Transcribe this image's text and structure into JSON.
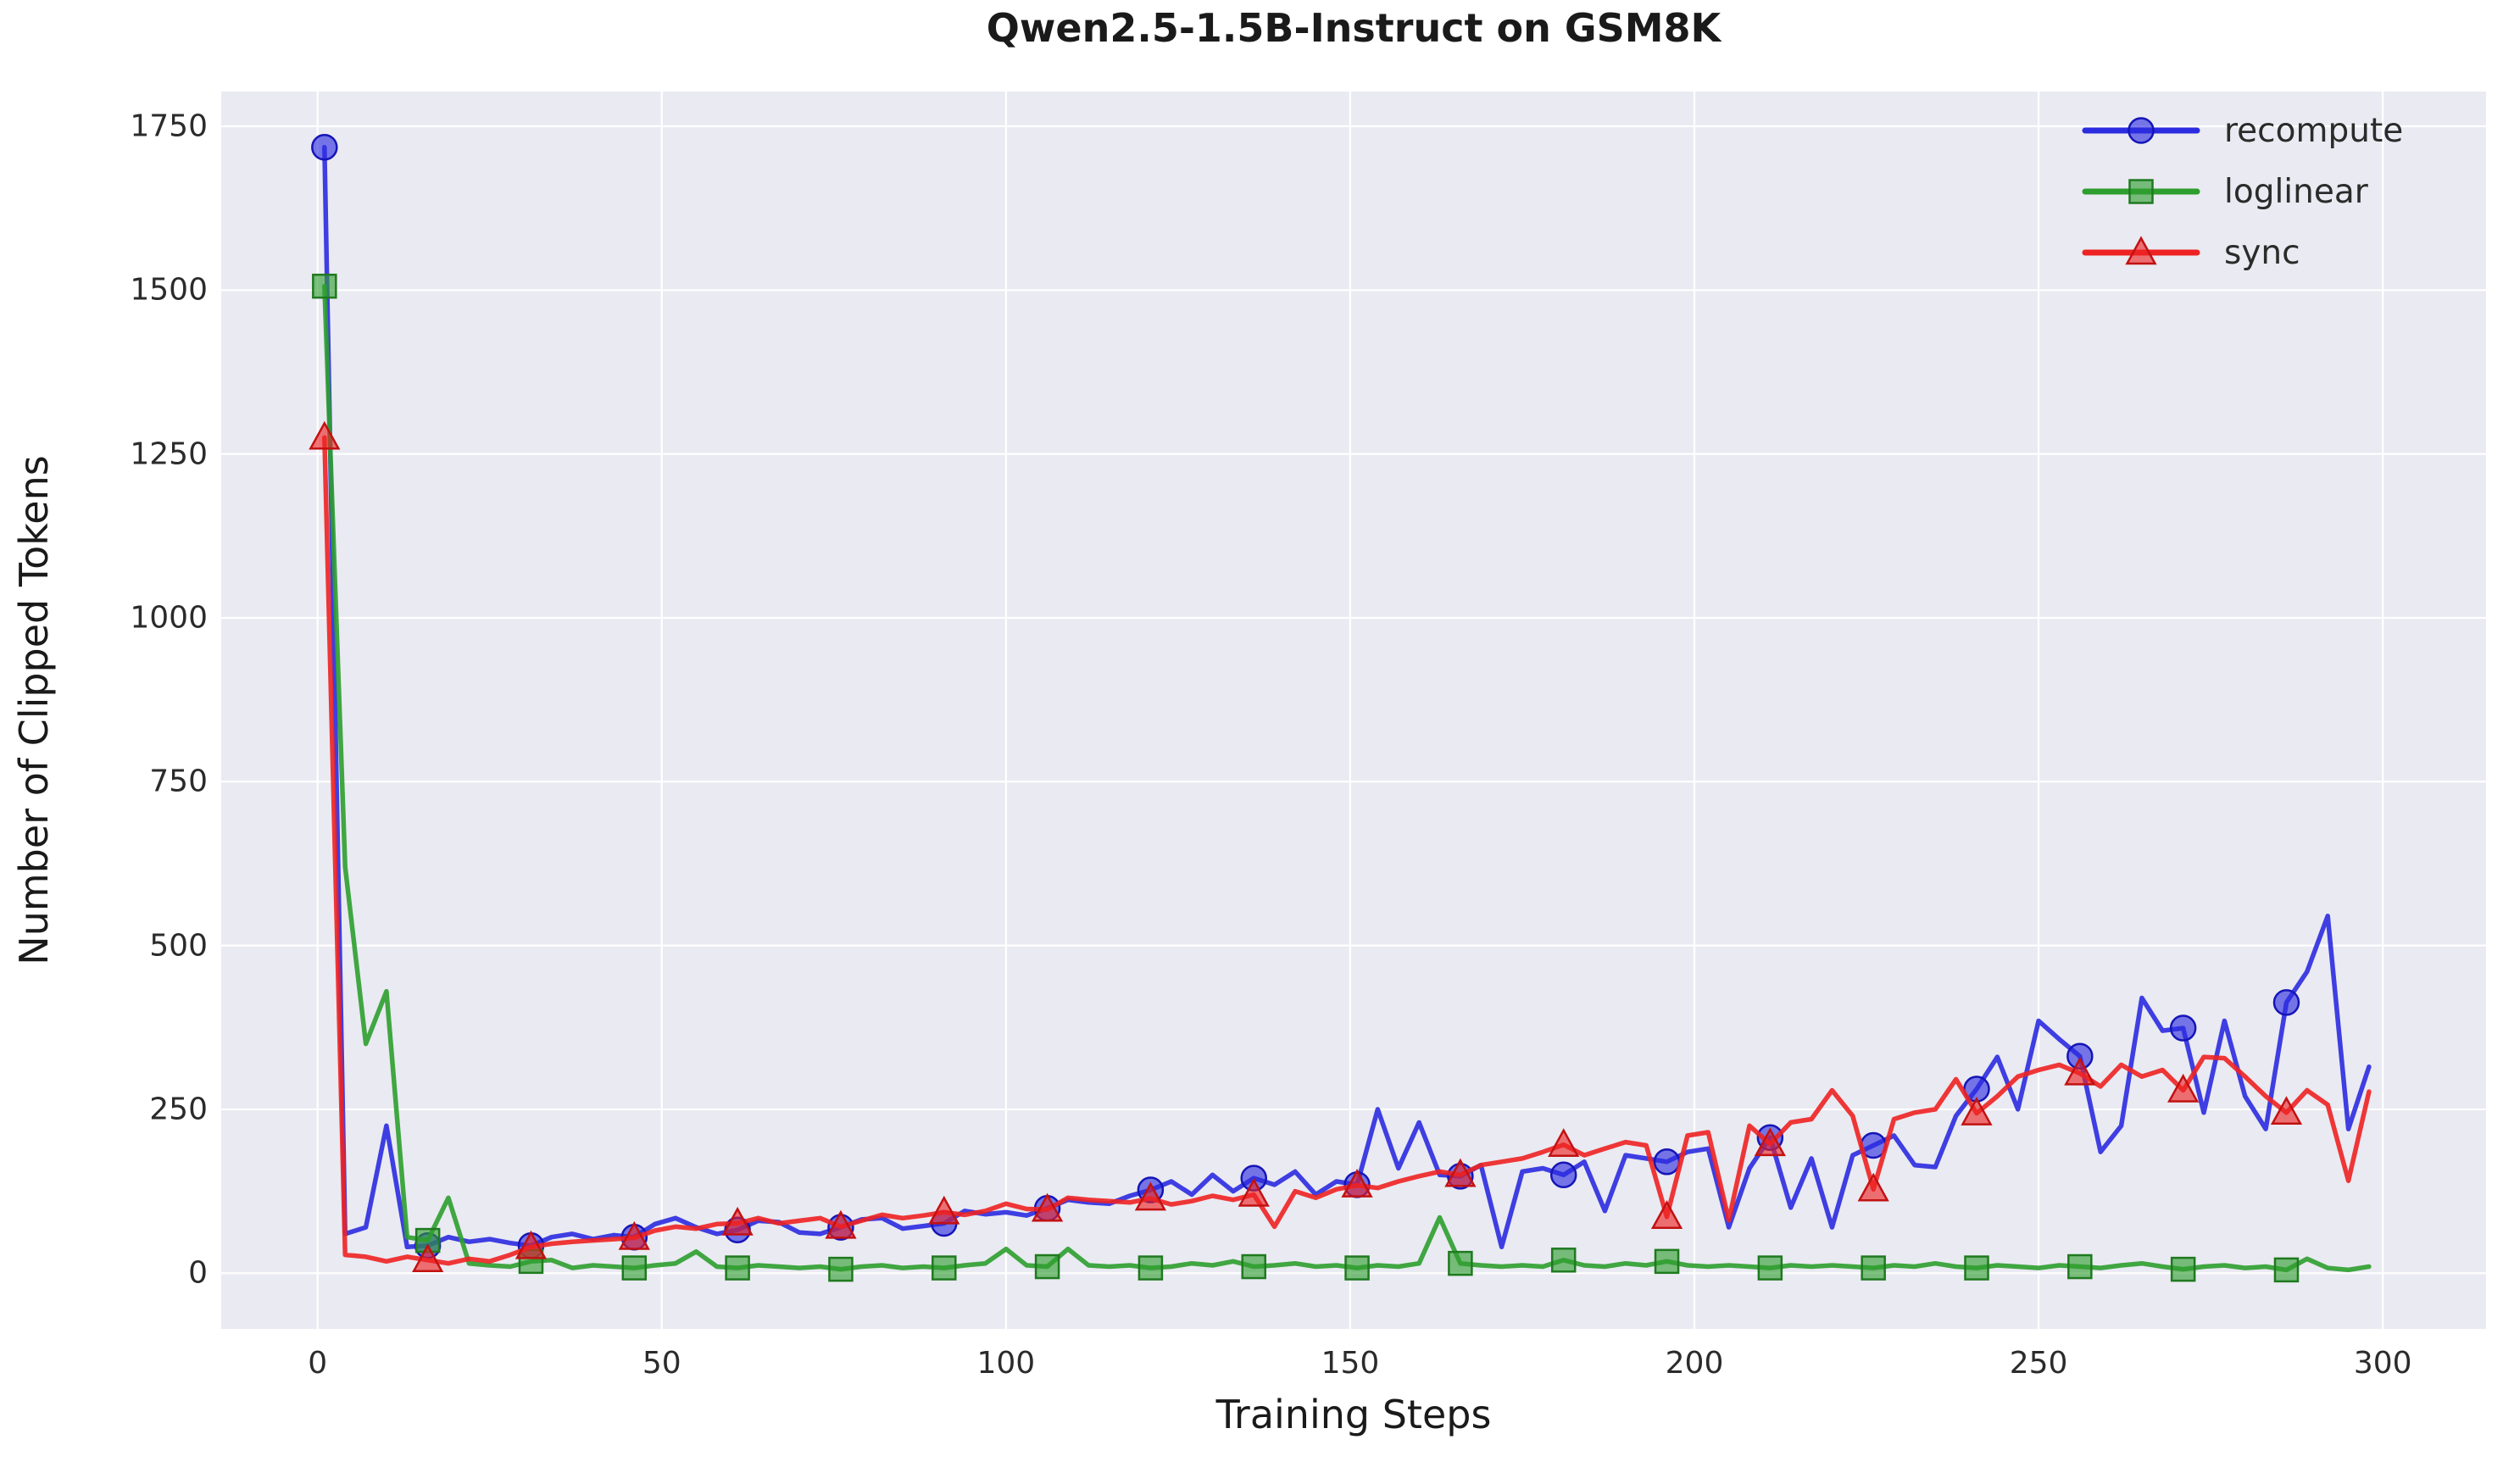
{
  "figure": {
    "background": "#ffffff",
    "plot_background": "#eaeaf2",
    "grid_color": "#ffffff",
    "text_color": "#2b2b2b"
  },
  "chart_data": {
    "type": "line",
    "title": "Qwen2.5-1.5B-Instruct on GSM8K",
    "xlabel": "Training Steps",
    "ylabel": "Number of Clipped Tokens",
    "xlim": [
      -14,
      315
    ],
    "ylim": [
      -85,
      1803
    ],
    "xticks": [
      0,
      50,
      100,
      150,
      200,
      250,
      300
    ],
    "yticks": [
      0,
      250,
      500,
      750,
      1000,
      1250,
      1500,
      1750
    ],
    "grid": true,
    "legend_position": "upper right",
    "markevery": 5,
    "x": [
      1,
      4,
      7,
      10,
      13,
      16,
      19,
      22,
      25,
      28,
      31,
      34,
      37,
      40,
      43,
      46,
      49,
      52,
      55,
      58,
      61,
      64,
      67,
      70,
      73,
      76,
      79,
      82,
      85,
      88,
      91,
      94,
      97,
      100,
      103,
      106,
      109,
      112,
      115,
      118,
      121,
      124,
      127,
      130,
      133,
      136,
      139,
      142,
      145,
      148,
      151,
      154,
      157,
      160,
      163,
      166,
      169,
      172,
      175,
      178,
      181,
      184,
      187,
      190,
      193,
      196,
      199,
      202,
      205,
      208,
      211,
      214,
      217,
      220,
      223,
      226,
      229,
      232,
      235,
      238,
      241,
      244,
      247,
      250,
      253,
      256,
      259,
      262,
      265,
      268,
      271,
      274,
      277,
      280,
      283,
      286,
      289,
      292,
      295,
      298
    ],
    "series": [
      {
        "name": "recompute",
        "color": "#2b2be0",
        "edge": "#1515b8",
        "marker": "circle",
        "values": [
          1718,
          60,
          70,
          225,
          40,
          42,
          55,
          48,
          52,
          46,
          42,
          55,
          60,
          52,
          58,
          55,
          75,
          84,
          70,
          60,
          66,
          80,
          78,
          62,
          60,
          70,
          82,
          84,
          68,
          72,
          76,
          95,
          90,
          93,
          88,
          99,
          112,
          108,
          106,
          118,
          127,
          140,
          120,
          150,
          125,
          145,
          135,
          155,
          120,
          140,
          135,
          250,
          160,
          230,
          150,
          148,
          165,
          40,
          155,
          160,
          150,
          170,
          95,
          180,
          175,
          170,
          185,
          190,
          70,
          160,
          207,
          100,
          175,
          70,
          180,
          195,
          210,
          165,
          162,
          240,
          281,
          330,
          250,
          385,
          357,
          331,
          185,
          225,
          420,
          370,
          374,
          245,
          385,
          270,
          220,
          413,
          460,
          545,
          220,
          315
        ]
      },
      {
        "name": "loglinear",
        "color": "#2e9e2e",
        "edge": "#1f7a1f",
        "marker": "square",
        "values": [
          1506,
          620,
          350,
          430,
          55,
          50,
          115,
          15,
          12,
          10,
          18,
          20,
          8,
          12,
          10,
          8,
          12,
          15,
          33,
          10,
          8,
          12,
          10,
          8,
          10,
          6,
          10,
          12,
          8,
          10,
          8,
          12,
          15,
          37,
          12,
          10,
          37,
          12,
          10,
          12,
          8,
          10,
          15,
          12,
          18,
          10,
          12,
          15,
          10,
          12,
          8,
          12,
          10,
          15,
          85,
          15,
          12,
          10,
          12,
          10,
          20,
          12,
          10,
          15,
          12,
          18,
          12,
          10,
          12,
          10,
          8,
          12,
          10,
          12,
          10,
          8,
          12,
          10,
          15,
          10,
          8,
          12,
          10,
          8,
          12,
          10,
          8,
          12,
          15,
          10,
          6,
          10,
          12,
          8,
          10,
          5,
          22,
          8,
          5,
          10
        ]
      },
      {
        "name": "sync",
        "color": "#ee2222",
        "edge": "#c21111",
        "marker": "triangle",
        "values": [
          1275,
          28,
          25,
          18,
          25,
          20,
          15,
          22,
          18,
          28,
          40,
          45,
          48,
          50,
          52,
          54,
          65,
          71,
          68,
          75,
          76,
          84,
          76,
          80,
          84,
          71,
          80,
          89,
          84,
          88,
          93,
          89,
          95,
          106,
          98,
          97,
          115,
          112,
          110,
          108,
          114,
          105,
          110,
          118,
          112,
          120,
          71,
          125,
          115,
          128,
          134,
          130,
          140,
          148,
          155,
          150,
          165,
          170,
          175,
          185,
          196,
          180,
          190,
          200,
          195,
          86,
          210,
          215,
          81,
          225,
          197,
          230,
          235,
          279,
          240,
          128,
          235,
          245,
          250,
          296,
          244,
          270,
          300,
          310,
          318,
          305,
          285,
          318,
          300,
          310,
          279,
          330,
          328,
          300,
          270,
          245,
          279,
          257,
          141,
          277
        ]
      }
    ]
  }
}
